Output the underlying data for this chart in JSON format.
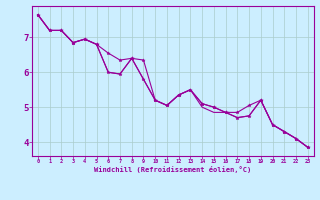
{
  "xlabel": "Windchill (Refroidissement éolien,°C)",
  "background_color": "#cceeff",
  "line_color": "#990099",
  "grid_color": "#aacccc",
  "x_hours": [
    0,
    1,
    2,
    3,
    4,
    5,
    6,
    7,
    8,
    9,
    10,
    11,
    12,
    13,
    14,
    15,
    16,
    17,
    18,
    19,
    20,
    21,
    22,
    23
  ],
  "line1": [
    7.65,
    7.2,
    7.2,
    6.85,
    6.95,
    6.8,
    6.55,
    6.35,
    6.4,
    6.35,
    5.2,
    5.05,
    5.35,
    5.5,
    5.1,
    5.0,
    4.85,
    4.85,
    5.05,
    5.2,
    4.5,
    4.3,
    4.1,
    3.85
  ],
  "line2": [
    7.65,
    7.2,
    7.2,
    6.85,
    6.95,
    6.8,
    6.0,
    5.95,
    6.4,
    5.8,
    5.2,
    5.05,
    5.35,
    5.5,
    5.1,
    5.0,
    4.85,
    4.7,
    4.75,
    5.2,
    4.5,
    4.3,
    4.1,
    3.85
  ],
  "line3": [
    7.65,
    7.2,
    7.2,
    6.85,
    6.95,
    6.8,
    6.0,
    5.95,
    6.4,
    5.8,
    5.2,
    5.05,
    5.35,
    5.5,
    5.0,
    4.85,
    4.85,
    4.7,
    4.75,
    5.2,
    4.5,
    4.3,
    4.1,
    3.85
  ],
  "ylim": [
    3.6,
    7.9
  ],
  "yticks": [
    4,
    5,
    6,
    7
  ],
  "xlim": [
    -0.5,
    23.5
  ]
}
